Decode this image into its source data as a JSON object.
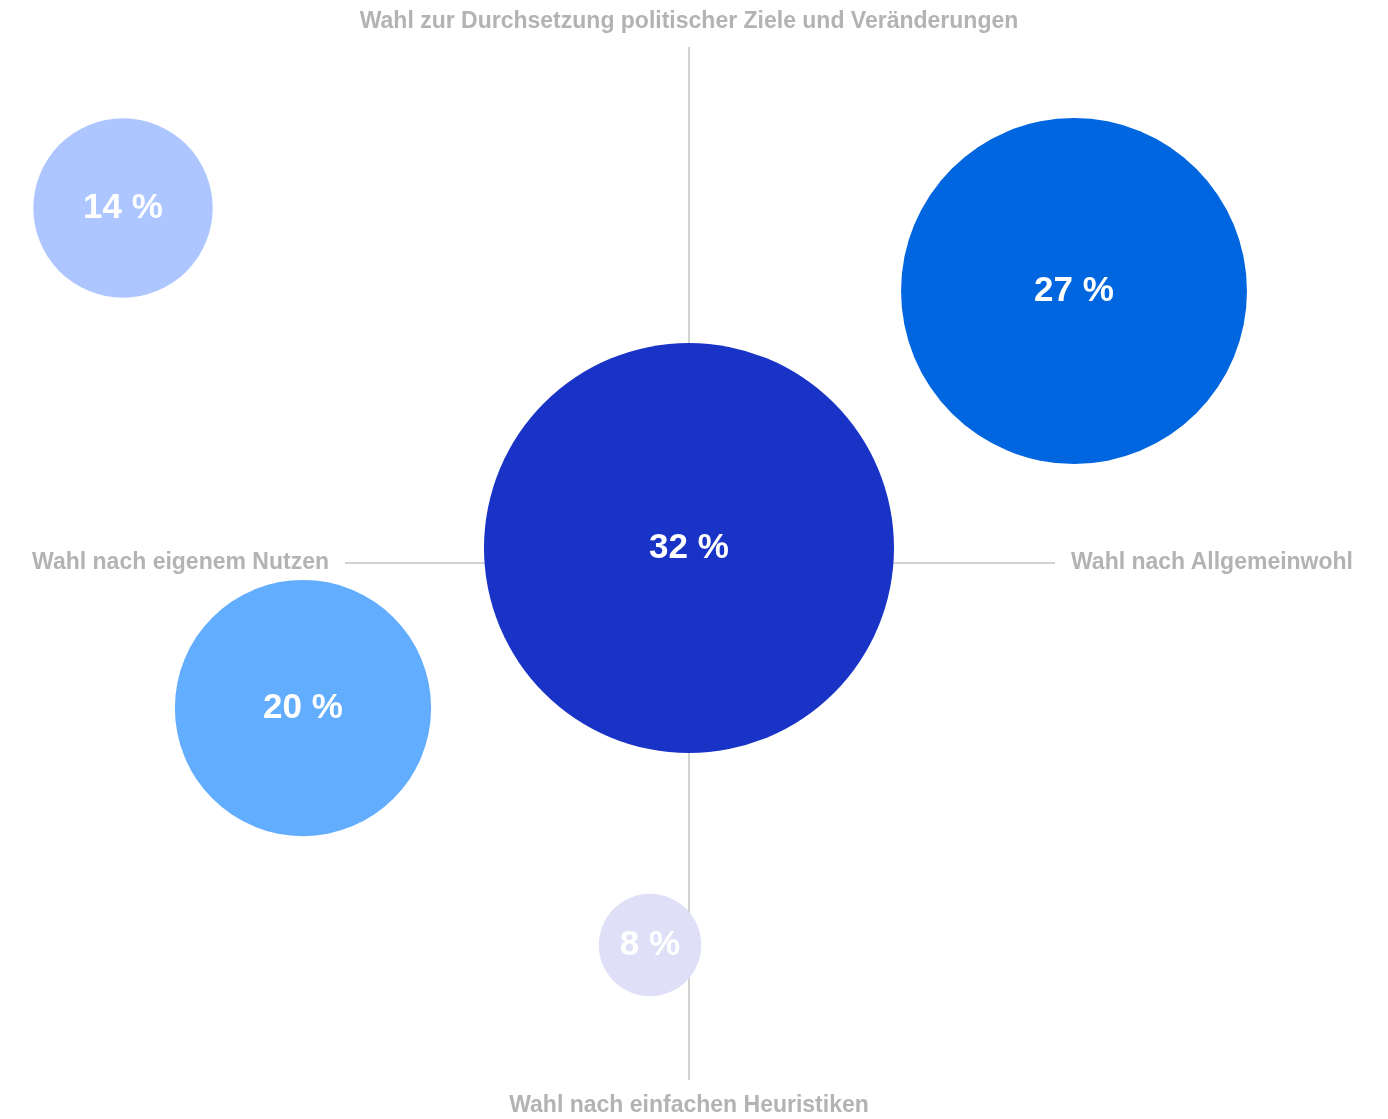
{
  "chart_data": {
    "type": "other",
    "annotations": [
      "Wahl zur Durchsetzung politischer Ziele und Veränderungen",
      "Wahl nach eigenem Nutzen",
      "Wahl nach Allgemeinwohl",
      "Wahl nach einfachen Heuristiken"
    ],
    "categories": [
      null,
      null,
      null,
      null,
      null
    ],
    "values": [
      14,
      27,
      32,
      20,
      8
    ],
    "colors": [
      "#adc6ff",
      "#0066e0",
      "#1a33c7",
      "#63adff",
      "#dfe0f7"
    ],
    "value_labels": [
      "14 %",
      "27 %",
      "32 %",
      "20 %",
      "8 %"
    ]
  }
}
